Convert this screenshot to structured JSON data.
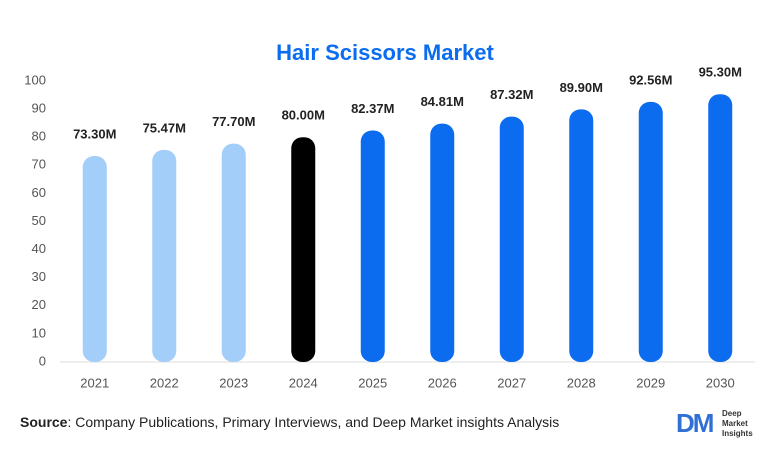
{
  "chart_data": {
    "type": "bar",
    "title": "Hair Scissors Market",
    "categories": [
      "2021",
      "2022",
      "2023",
      "2024",
      "2025",
      "2026",
      "2027",
      "2028",
      "2029",
      "2030"
    ],
    "values": [
      73.3,
      75.47,
      77.7,
      80.0,
      82.37,
      84.81,
      87.32,
      89.9,
      92.56,
      95.3
    ],
    "value_labels": [
      "73.30M",
      "75.47M",
      "77.70M",
      "80.00M",
      "82.37M",
      "84.81M",
      "87.32M",
      "89.90M",
      "92.56M",
      "95.30M"
    ],
    "colors": [
      "#a4cefa",
      "#a4cefa",
      "#a4cefa",
      "#000000",
      "#0b6cf0",
      "#0b6cf0",
      "#0b6cf0",
      "#0b6cf0",
      "#0b6cf0",
      "#0b6cf0"
    ],
    "ylim": [
      0,
      100
    ],
    "yticks": [
      0,
      10,
      20,
      30,
      40,
      50,
      60,
      70,
      80,
      90,
      100
    ],
    "grid": false
  },
  "source": {
    "label": "Source",
    "text": ": Company Publications, Primary Interviews, and Deep Market insights Analysis"
  },
  "logo": {
    "mark": "DM",
    "lines": [
      "Deep",
      "Market",
      "Insights"
    ]
  }
}
